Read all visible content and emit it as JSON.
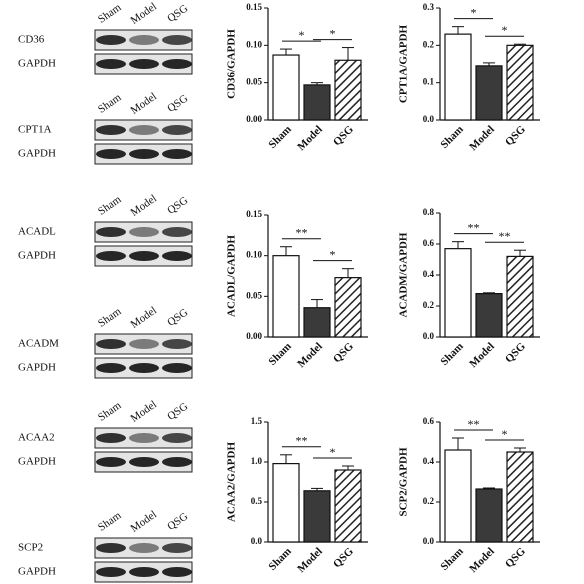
{
  "blots": [
    {
      "protein": "CD36",
      "control": "GAPDH",
      "lanes": [
        "Sham",
        "Model",
        "QSG"
      ]
    },
    {
      "protein": "CPT1A",
      "control": "GAPDH",
      "lanes": [
        "Sham",
        "Model",
        "QSG"
      ]
    },
    {
      "protein": "ACADL",
      "control": "GAPDH",
      "lanes": [
        "Sham",
        "Model",
        "QSG"
      ]
    },
    {
      "protein": "ACADM",
      "control": "GAPDH",
      "lanes": [
        "Sham",
        "Model",
        "QSG"
      ]
    },
    {
      "protein": "ACAA2",
      "control": "GAPDH",
      "lanes": [
        "Sham",
        "Model",
        "QSG"
      ]
    },
    {
      "protein": "SCP2",
      "control": "GAPDH",
      "lanes": [
        "Sham",
        "Model",
        "QSG"
      ]
    }
  ],
  "chart_data": [
    {
      "type": "bar",
      "ylabel": "CD36/GAPDH",
      "categories": [
        "Sham",
        "Model",
        "QSG"
      ],
      "values": [
        0.087,
        0.047,
        0.08
      ],
      "errors": [
        0.008,
        0.003,
        0.017
      ],
      "colors": [
        "#ffffff",
        "#3a3a3a",
        "#ffffff"
      ],
      "hatch": [
        false,
        false,
        true
      ],
      "ylim": [
        0,
        0.15
      ],
      "yticks": [
        {
          "value": 0,
          "label": "0.00"
        },
        0.05,
        {
          "value": 0.1,
          "label": "0.10"
        },
        0.15
      ],
      "annotations": [
        {
          "text": "*",
          "pair": [
            0,
            1
          ]
        },
        {
          "text": "*",
          "pair": [
            1,
            2
          ]
        }
      ]
    },
    {
      "type": "bar",
      "ylabel": "CPT1A/GAPDH",
      "categories": [
        "Sham",
        "Model",
        "QSG"
      ],
      "values": [
        0.23,
        0.145,
        0.2
      ],
      "errors": [
        0.02,
        0.008,
        0.003
      ],
      "colors": [
        "#ffffff",
        "#3a3a3a",
        "#ffffff"
      ],
      "hatch": [
        false,
        false,
        true
      ],
      "ylim": [
        0,
        0.3
      ],
      "yticks": [
        {
          "value": 0,
          "label": "0.0"
        },
        0.1,
        0.2,
        0.3
      ],
      "annotations": [
        {
          "text": "*",
          "pair": [
            0,
            1
          ]
        },
        {
          "text": "*",
          "pair": [
            1,
            2
          ]
        }
      ]
    },
    {
      "type": "bar",
      "ylabel": "ACADL/GAPDH",
      "categories": [
        "Sham",
        "Model",
        "QSG"
      ],
      "values": [
        0.1,
        0.036,
        0.073
      ],
      "errors": [
        0.011,
        0.01,
        0.011
      ],
      "colors": [
        "#ffffff",
        "#3a3a3a",
        "#ffffff"
      ],
      "hatch": [
        false,
        false,
        true
      ],
      "ylim": [
        0,
        0.15
      ],
      "yticks": [
        {
          "value": 0,
          "label": "0.00"
        },
        0.05,
        {
          "value": 0.1,
          "label": "0.10"
        },
        0.15
      ],
      "annotations": [
        {
          "text": "**",
          "pair": [
            0,
            1
          ]
        },
        {
          "text": "*",
          "pair": [
            1,
            2
          ]
        }
      ]
    },
    {
      "type": "bar",
      "ylabel": "ACADM/GAPDH",
      "categories": [
        "Sham",
        "Model",
        "QSG"
      ],
      "values": [
        0.57,
        0.28,
        0.52
      ],
      "errors": [
        0.045,
        0.005,
        0.04
      ],
      "colors": [
        "#ffffff",
        "#3a3a3a",
        "#ffffff"
      ],
      "hatch": [
        false,
        false,
        true
      ],
      "ylim": [
        0,
        0.8
      ],
      "yticks": [
        {
          "value": 0,
          "label": "0.0"
        },
        0.2,
        0.4,
        0.6,
        0.8
      ],
      "annotations": [
        {
          "text": "**",
          "pair": [
            0,
            1
          ]
        },
        {
          "text": "**",
          "pair": [
            1,
            2
          ]
        }
      ]
    },
    {
      "type": "bar",
      "ylabel": "ACAA2/GAPDH",
      "categories": [
        "Sham",
        "Model",
        "QSG"
      ],
      "values": [
        0.98,
        0.64,
        0.9
      ],
      "errors": [
        0.11,
        0.03,
        0.05
      ],
      "colors": [
        "#ffffff",
        "#3a3a3a",
        "#ffffff"
      ],
      "hatch": [
        false,
        false,
        true
      ],
      "ylim": [
        0,
        1.5
      ],
      "yticks": [
        {
          "value": 0,
          "label": "0.0"
        },
        0.5,
        {
          "value": 1,
          "label": "1.0"
        },
        1.5
      ],
      "annotations": [
        {
          "text": "**",
          "pair": [
            0,
            1
          ]
        },
        {
          "text": "*",
          "pair": [
            1,
            2
          ]
        }
      ]
    },
    {
      "type": "bar",
      "ylabel": "SCP2/GAPDH",
      "categories": [
        "Sham",
        "Model",
        "QSG"
      ],
      "values": [
        0.46,
        0.265,
        0.45
      ],
      "errors": [
        0.06,
        0.005,
        0.02
      ],
      "colors": [
        "#ffffff",
        "#3a3a3a",
        "#ffffff"
      ],
      "hatch": [
        false,
        false,
        true
      ],
      "ylim": [
        0,
        0.6
      ],
      "yticks": [
        {
          "value": 0,
          "label": "0.0"
        },
        0.2,
        0.4,
        0.6
      ],
      "annotations": [
        {
          "text": "**",
          "pair": [
            0,
            1
          ]
        },
        {
          "text": "*",
          "pair": [
            1,
            2
          ]
        }
      ]
    }
  ]
}
